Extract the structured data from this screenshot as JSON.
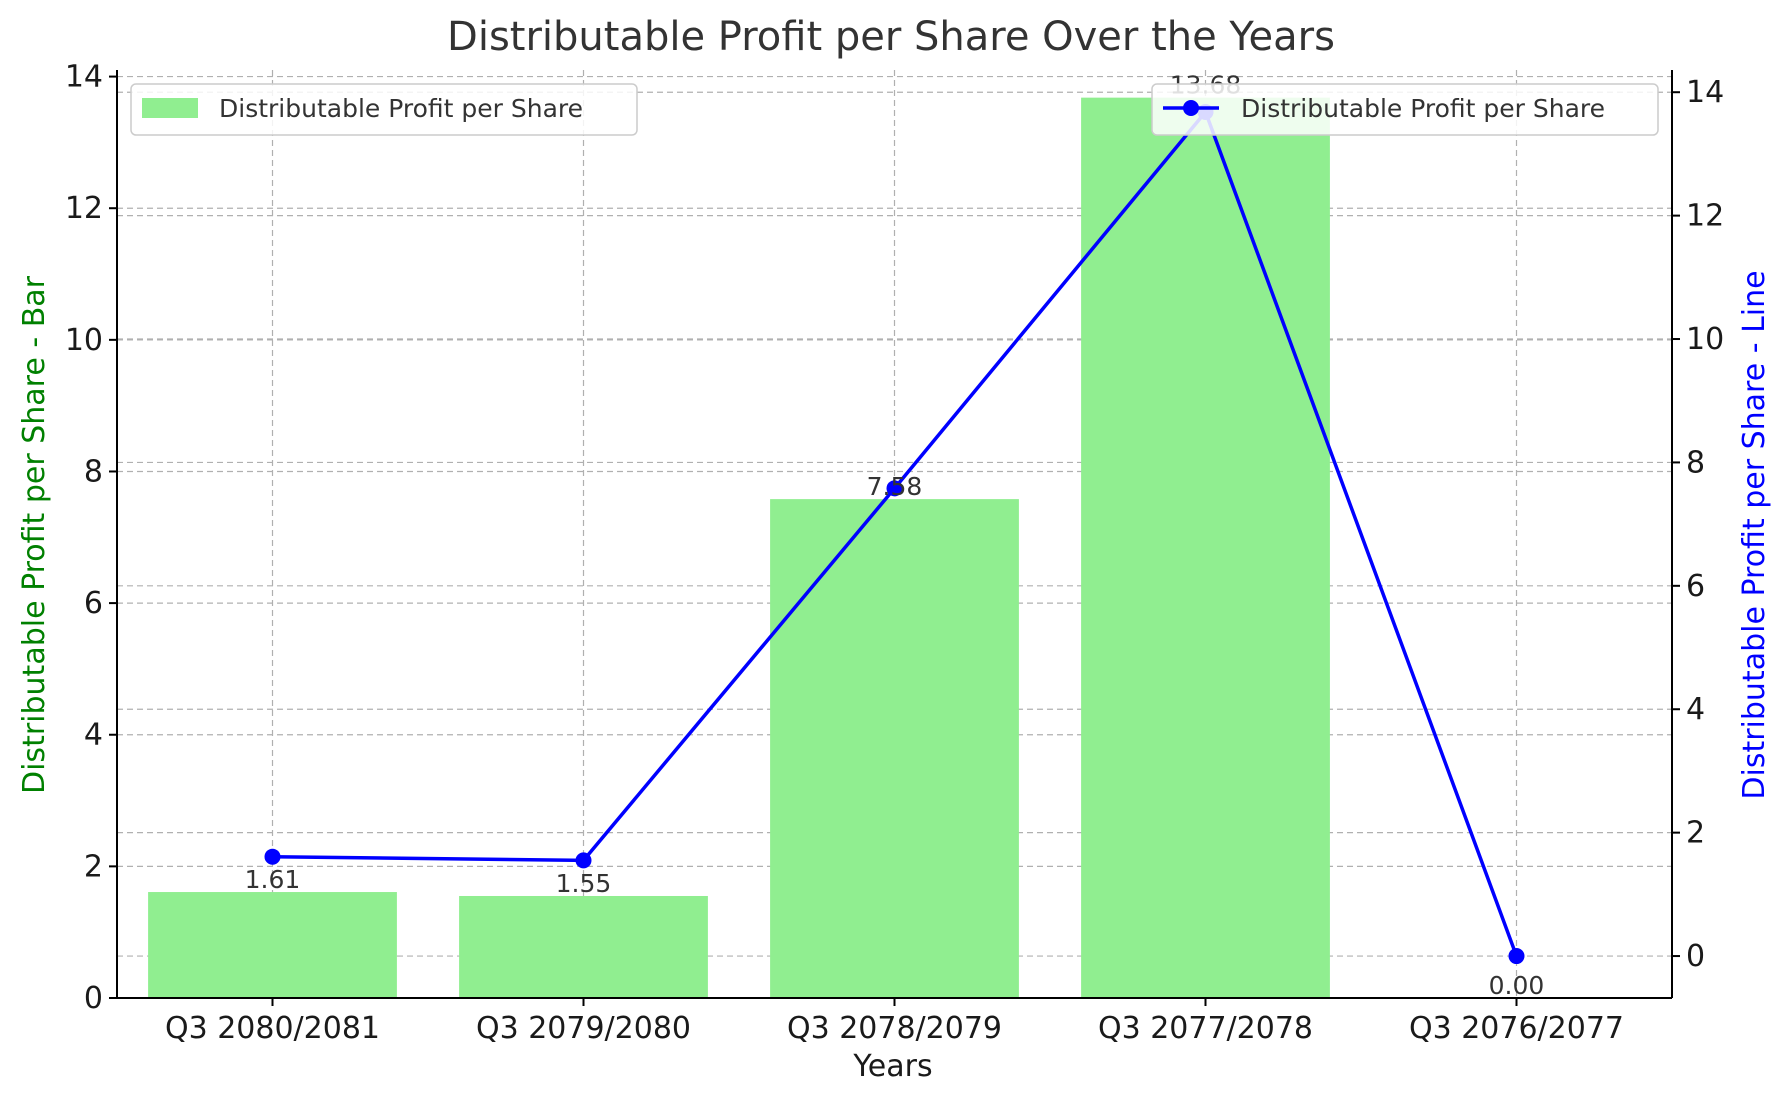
{
  "chart_data": {
    "type": "bar+line",
    "title": "Distributable Profit per Share Over the Years",
    "xlabel": "Years",
    "ylabel_left": "Distributable Profit per Share - Bar",
    "ylabel_right": "Distributable Profit per Share - Line",
    "categories": [
      "Q3 2080/2081",
      "Q3 2079/2080",
      "Q3 2078/2079",
      "Q3 2077/2078",
      "Q3 2076/2077"
    ],
    "bar_series": {
      "name": "Distributable Profit per Share",
      "values": [
        1.61,
        1.55,
        7.58,
        13.68,
        0.0
      ],
      "labels": [
        "1.61",
        "1.55",
        "7.58",
        "13.68",
        "0.00"
      ],
      "color": "#90ee90"
    },
    "line_series": {
      "name": "Distributable Profit per Share",
      "values": [
        1.61,
        1.55,
        7.58,
        13.68,
        0.0
      ],
      "color": "#0000ff"
    },
    "ylim_left": [
      0,
      14.1
    ],
    "yticks_left": [
      0,
      2,
      4,
      6,
      8,
      10,
      12,
      14
    ],
    "ylim_right": [
      -0.68,
      14.36
    ],
    "yticks_right": [
      0,
      2,
      4,
      6,
      8,
      10,
      12,
      14
    ],
    "grid": true,
    "left_axis_label_color": "#008000",
    "right_axis_label_color": "#0000ff",
    "legend_bar_placement": "upper left",
    "legend_line_placement": "upper right"
  }
}
